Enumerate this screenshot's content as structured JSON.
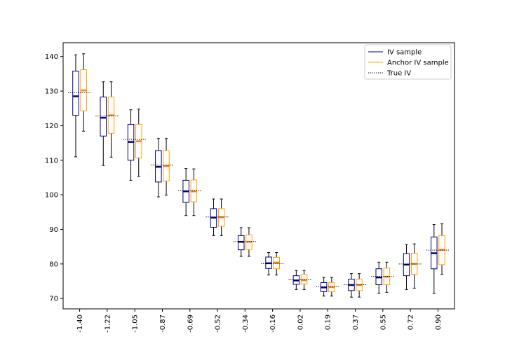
{
  "chart_data": {
    "type": "box",
    "title": "",
    "xlabel": "",
    "ylabel": "",
    "ylim": [
      67,
      144
    ],
    "yticks": [
      70,
      80,
      90,
      100,
      110,
      120,
      130,
      140
    ],
    "ytick_labels": [
      "70",
      "80",
      "90",
      "100",
      "110",
      "120",
      "130",
      "140"
    ],
    "categories": [
      "-1.40",
      "-1.22",
      "-1.05",
      "-0.87",
      "-0.69",
      "-0.52",
      "-0.34",
      "-0.16",
      "0.02",
      "0.19",
      "0.37",
      "0.55",
      "0.72",
      "0.90"
    ],
    "legend": {
      "position": "top-right",
      "entries": [
        {
          "label": "IV sample",
          "color": "#00008b",
          "style": "solid"
        },
        {
          "label": "Anchor IV sample",
          "color": "#ffa500",
          "style": "solid"
        },
        {
          "label": "True IV",
          "color": "#000000",
          "style": "dotted"
        }
      ]
    },
    "series": [
      {
        "name": "IV sample",
        "color": "#00008b",
        "boxes": [
          {
            "whislo": 111.0,
            "q1": 123.0,
            "med": 128.5,
            "q3": 135.8,
            "whishi": 140.5
          },
          {
            "whislo": 108.5,
            "q1": 117.0,
            "med": 122.3,
            "q3": 128.3,
            "whishi": 132.7
          },
          {
            "whislo": 104.2,
            "q1": 110.0,
            "med": 115.3,
            "q3": 120.4,
            "whishi": 124.6
          },
          {
            "whislo": 99.4,
            "q1": 103.7,
            "med": 108.1,
            "q3": 112.8,
            "whishi": 116.3
          },
          {
            "whislo": 94.0,
            "q1": 97.8,
            "med": 101.0,
            "q3": 104.2,
            "whishi": 107.6
          },
          {
            "whislo": 88.2,
            "q1": 90.6,
            "med": 93.4,
            "q3": 96.0,
            "whishi": 98.8
          },
          {
            "whislo": 82.2,
            "q1": 84.1,
            "med": 86.4,
            "q3": 88.2,
            "whishi": 90.5
          },
          {
            "whislo": 76.8,
            "q1": 78.7,
            "med": 80.2,
            "q3": 82.0,
            "whishi": 83.3
          },
          {
            "whislo": 72.6,
            "q1": 74.1,
            "med": 75.2,
            "q3": 76.6,
            "whishi": 78.1
          },
          {
            "whislo": 70.7,
            "q1": 72.0,
            "med": 73.2,
            "q3": 74.6,
            "whishi": 76.1
          },
          {
            "whislo": 70.4,
            "q1": 72.3,
            "med": 73.9,
            "q3": 75.6,
            "whishi": 77.2
          },
          {
            "whislo": 71.5,
            "q1": 74.0,
            "med": 76.1,
            "q3": 78.6,
            "whishi": 80.5
          },
          {
            "whislo": 72.6,
            "q1": 76.6,
            "med": 79.8,
            "q3": 83.0,
            "whishi": 85.6
          },
          {
            "whislo": 71.5,
            "q1": 78.6,
            "med": 83.1,
            "q3": 87.8,
            "whishi": 91.4
          }
        ]
      },
      {
        "name": "Anchor IV sample",
        "color": "#ffa500",
        "boxes": [
          {
            "whislo": 118.4,
            "q1": 124.3,
            "med": 130.2,
            "q3": 136.2,
            "whishi": 140.8
          },
          {
            "whislo": 110.9,
            "q1": 117.8,
            "med": 123.0,
            "q3": 128.3,
            "whishi": 132.7
          },
          {
            "whislo": 105.3,
            "q1": 110.7,
            "med": 115.5,
            "q3": 120.4,
            "whishi": 124.8
          },
          {
            "whislo": 99.9,
            "q1": 104.0,
            "med": 108.3,
            "q3": 112.8,
            "whishi": 116.3
          },
          {
            "whislo": 94.0,
            "q1": 98.0,
            "med": 101.0,
            "q3": 104.3,
            "whishi": 107.5
          },
          {
            "whislo": 88.2,
            "q1": 90.9,
            "med": 93.5,
            "q3": 96.0,
            "whishi": 98.8
          },
          {
            "whislo": 82.2,
            "q1": 84.2,
            "med": 86.4,
            "q3": 88.4,
            "whishi": 90.5
          },
          {
            "whislo": 76.8,
            "q1": 78.6,
            "med": 80.4,
            "q3": 81.9,
            "whishi": 83.3
          },
          {
            "whislo": 72.6,
            "q1": 74.2,
            "med": 75.3,
            "q3": 76.9,
            "whishi": 78.1
          },
          {
            "whislo": 70.7,
            "q1": 72.0,
            "med": 73.3,
            "q3": 74.6,
            "whishi": 76.1
          },
          {
            "whislo": 70.4,
            "q1": 72.3,
            "med": 73.9,
            "q3": 75.6,
            "whishi": 77.2
          },
          {
            "whislo": 71.8,
            "q1": 74.0,
            "med": 76.3,
            "q3": 78.8,
            "whishi": 80.5
          },
          {
            "whislo": 73.0,
            "q1": 77.0,
            "med": 80.0,
            "q3": 83.1,
            "whishi": 85.8
          },
          {
            "whislo": 77.0,
            "q1": 79.8,
            "med": 84.1,
            "q3": 88.2,
            "whishi": 91.6
          }
        ]
      },
      {
        "name": "True IV",
        "color": "#000000",
        "values": [
          129.5,
          122.8,
          116.0,
          108.6,
          101.2,
          93.6,
          86.5,
          80.1,
          75.4,
          73.4,
          74.0,
          76.4,
          80.0,
          84.0
        ]
      }
    ]
  }
}
